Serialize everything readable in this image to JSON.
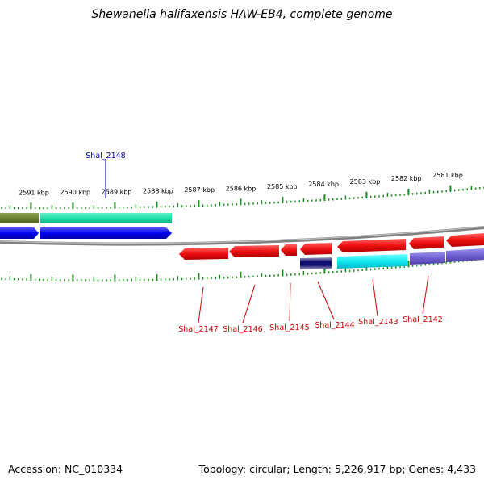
{
  "header": {
    "title": "Shewanella halifaxensis HAW-EB4, complete genome"
  },
  "footer": {
    "accession": "Accession: NC_010334",
    "summary": "Topology: circular; Length: 5,226,917 bp; Genes: 4,433"
  },
  "colors": {
    "tick": "#1a8a1a",
    "backbone": "#808080",
    "forward_gene": "#0000ee",
    "reverse_gene": "#ee1010",
    "label_forward": "#0000aa",
    "label_reverse": "#cc0000"
  },
  "scale": {
    "kbp_labels": [
      "2591 kbp",
      "2590 kbp",
      "2589 kbp",
      "2588 kbp",
      "2587 kbp",
      "2586 kbp",
      "2585 kbp",
      "2584 kbp",
      "2583 kbp",
      "2582 kbp",
      "2581 kbp"
    ]
  },
  "gene_labels": {
    "top": [
      "Shal_2148"
    ],
    "bottom": [
      "Shal_2147",
      "Shal_2146",
      "Shal_2145",
      "Shal_2144",
      "Shal_2143",
      "Shal_2142"
    ]
  }
}
